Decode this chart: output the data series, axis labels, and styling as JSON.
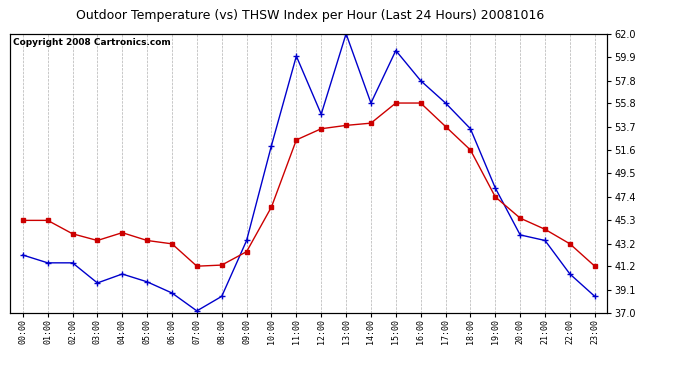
{
  "title": "Outdoor Temperature (vs) THSW Index per Hour (Last 24 Hours) 20081016",
  "copyright": "Copyright 2008 Cartronics.com",
  "hours": [
    "00:00",
    "01:00",
    "02:00",
    "03:00",
    "04:00",
    "05:00",
    "06:00",
    "07:00",
    "08:00",
    "09:00",
    "10:00",
    "11:00",
    "12:00",
    "13:00",
    "14:00",
    "15:00",
    "16:00",
    "17:00",
    "18:00",
    "19:00",
    "20:00",
    "21:00",
    "22:00",
    "23:00"
  ],
  "temp": [
    45.3,
    45.3,
    44.1,
    43.5,
    44.2,
    43.5,
    43.2,
    41.2,
    41.3,
    42.5,
    46.5,
    52.5,
    53.5,
    53.8,
    54.0,
    55.8,
    55.8,
    53.7,
    51.6,
    47.4,
    45.5,
    44.5,
    43.2,
    41.2
  ],
  "thsw": [
    42.2,
    41.5,
    41.5,
    39.7,
    40.5,
    39.8,
    38.8,
    37.2,
    38.5,
    43.5,
    52.0,
    60.0,
    54.8,
    62.0,
    55.8,
    60.5,
    57.8,
    55.8,
    53.5,
    48.2,
    44.0,
    43.5,
    40.5,
    38.5
  ],
  "ylim_min": 37.0,
  "ylim_max": 62.0,
  "yticks": [
    37.0,
    39.1,
    41.2,
    43.2,
    45.3,
    47.4,
    49.5,
    51.6,
    53.7,
    55.8,
    57.8,
    59.9,
    62.0
  ],
  "temp_color": "#cc0000",
  "thsw_color": "#0000cc",
  "bg_color": "#ffffff",
  "grid_color": "#aaaaaa",
  "title_fontsize": 9,
  "copyright_fontsize": 6.5
}
